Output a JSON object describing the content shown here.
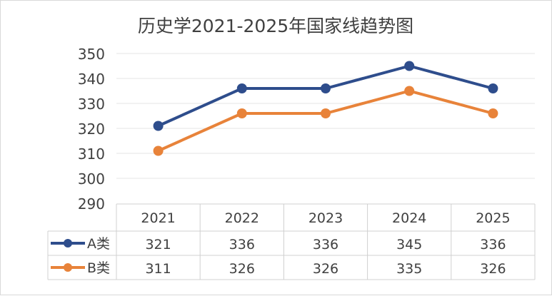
{
  "chart_data": {
    "type": "line",
    "title": "历史学2021-2025年国家线趋势图",
    "categories": [
      "2021",
      "2022",
      "2023",
      "2024",
      "2025"
    ],
    "series": [
      {
        "name": "A类",
        "values": [
          321,
          336,
          336,
          345,
          336
        ],
        "color": "#2E4D8C"
      },
      {
        "name": "B类",
        "values": [
          311,
          326,
          326,
          335,
          326
        ],
        "color": "#E8833A"
      }
    ],
    "ylim": [
      290,
      350
    ],
    "yticks": [
      "290",
      "300",
      "310",
      "320",
      "330",
      "340",
      "350"
    ],
    "grid": true,
    "legend": "data-table"
  }
}
